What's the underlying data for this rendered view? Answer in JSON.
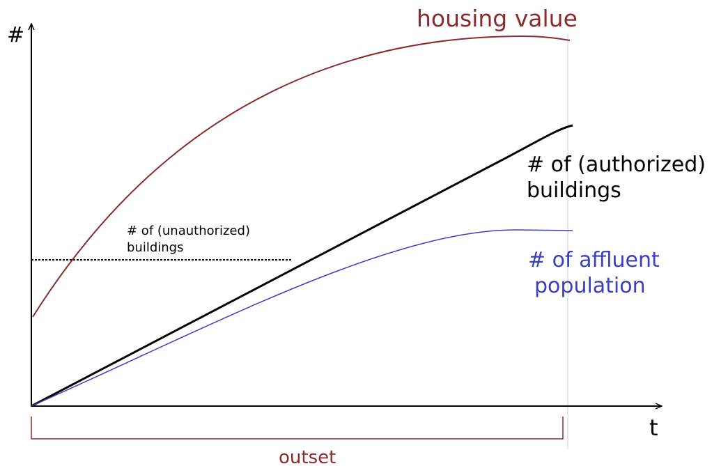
{
  "axes": {
    "y_label": "#",
    "x_label": "t"
  },
  "curves": {
    "housing_value": {
      "label": "housing value"
    },
    "authorized": {
      "label_lines": [
        "# of (authorized)",
        "buildings"
      ]
    },
    "affluent": {
      "label_lines": [
        "# of affluent",
        "population"
      ]
    },
    "unauthorized": {
      "label_lines": [
        "# of (unauthorized)",
        "buildings"
      ]
    }
  },
  "period": {
    "label": "outset"
  }
}
